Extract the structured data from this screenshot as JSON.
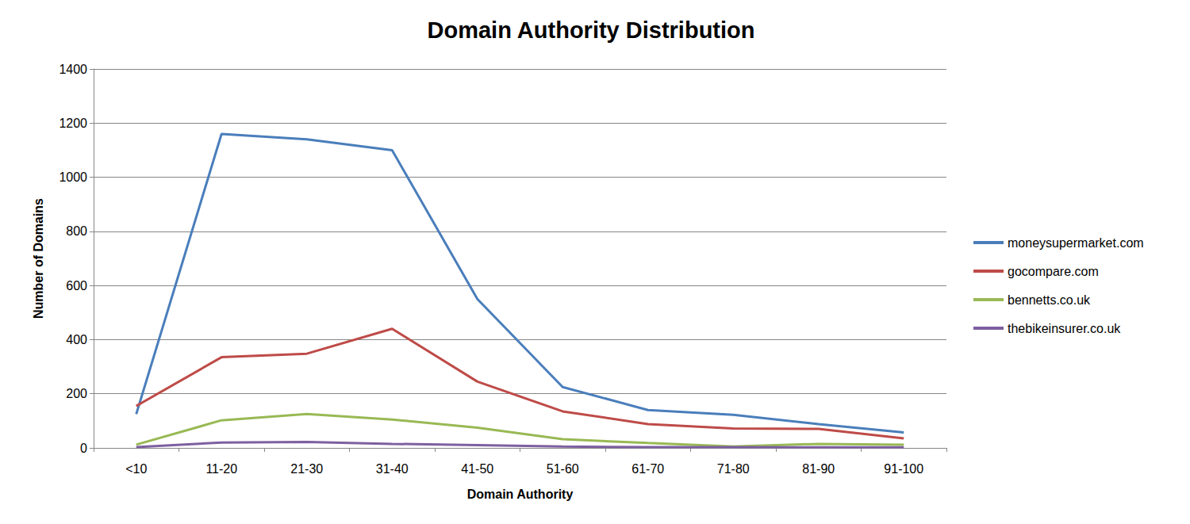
{
  "chart_data": {
    "type": "line",
    "title": "Domain Authority Distribution",
    "x_label": "Domain Authority",
    "y_label": "Number of Domains",
    "categories": [
      "<10",
      "11-20",
      "21-30",
      "31-40",
      "41-50",
      "51-60",
      "61-70",
      "71-80",
      "81-90",
      "91-100"
    ],
    "series": [
      {
        "name": "moneysupermarket.com",
        "color": "#4a7ebb",
        "values": [
          125,
          1160,
          1140,
          1100,
          550,
          225,
          140,
          122,
          88,
          57
        ]
      },
      {
        "name": "gocompare.com",
        "color": "#be4b48",
        "values": [
          155,
          335,
          348,
          440,
          245,
          135,
          88,
          72,
          70,
          35
        ]
      },
      {
        "name": "bennetts.co.uk",
        "color": "#98b954",
        "values": [
          12,
          102,
          125,
          105,
          75,
          32,
          18,
          5,
          15,
          12
        ]
      },
      {
        "name": "thebikeinsurer.co.uk",
        "color": "#7d60a0",
        "values": [
          3,
          20,
          22,
          15,
          10,
          5,
          3,
          3,
          2,
          2
        ]
      }
    ],
    "ylim": [
      0,
      1400
    ],
    "yticks": [
      0,
      200,
      400,
      600,
      800,
      1000,
      1200,
      1400
    ],
    "grid": true,
    "legend": "right"
  }
}
